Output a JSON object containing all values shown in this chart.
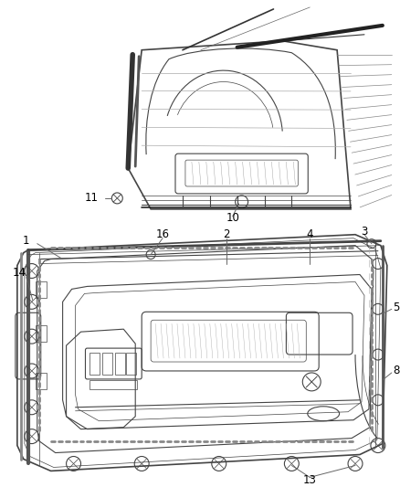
{
  "background_color": "#ffffff",
  "figsize": [
    4.38,
    5.33
  ],
  "dpi": 100,
  "line_color": "#444444",
  "text_color": "#000000",
  "label_fontsize": 8.5
}
